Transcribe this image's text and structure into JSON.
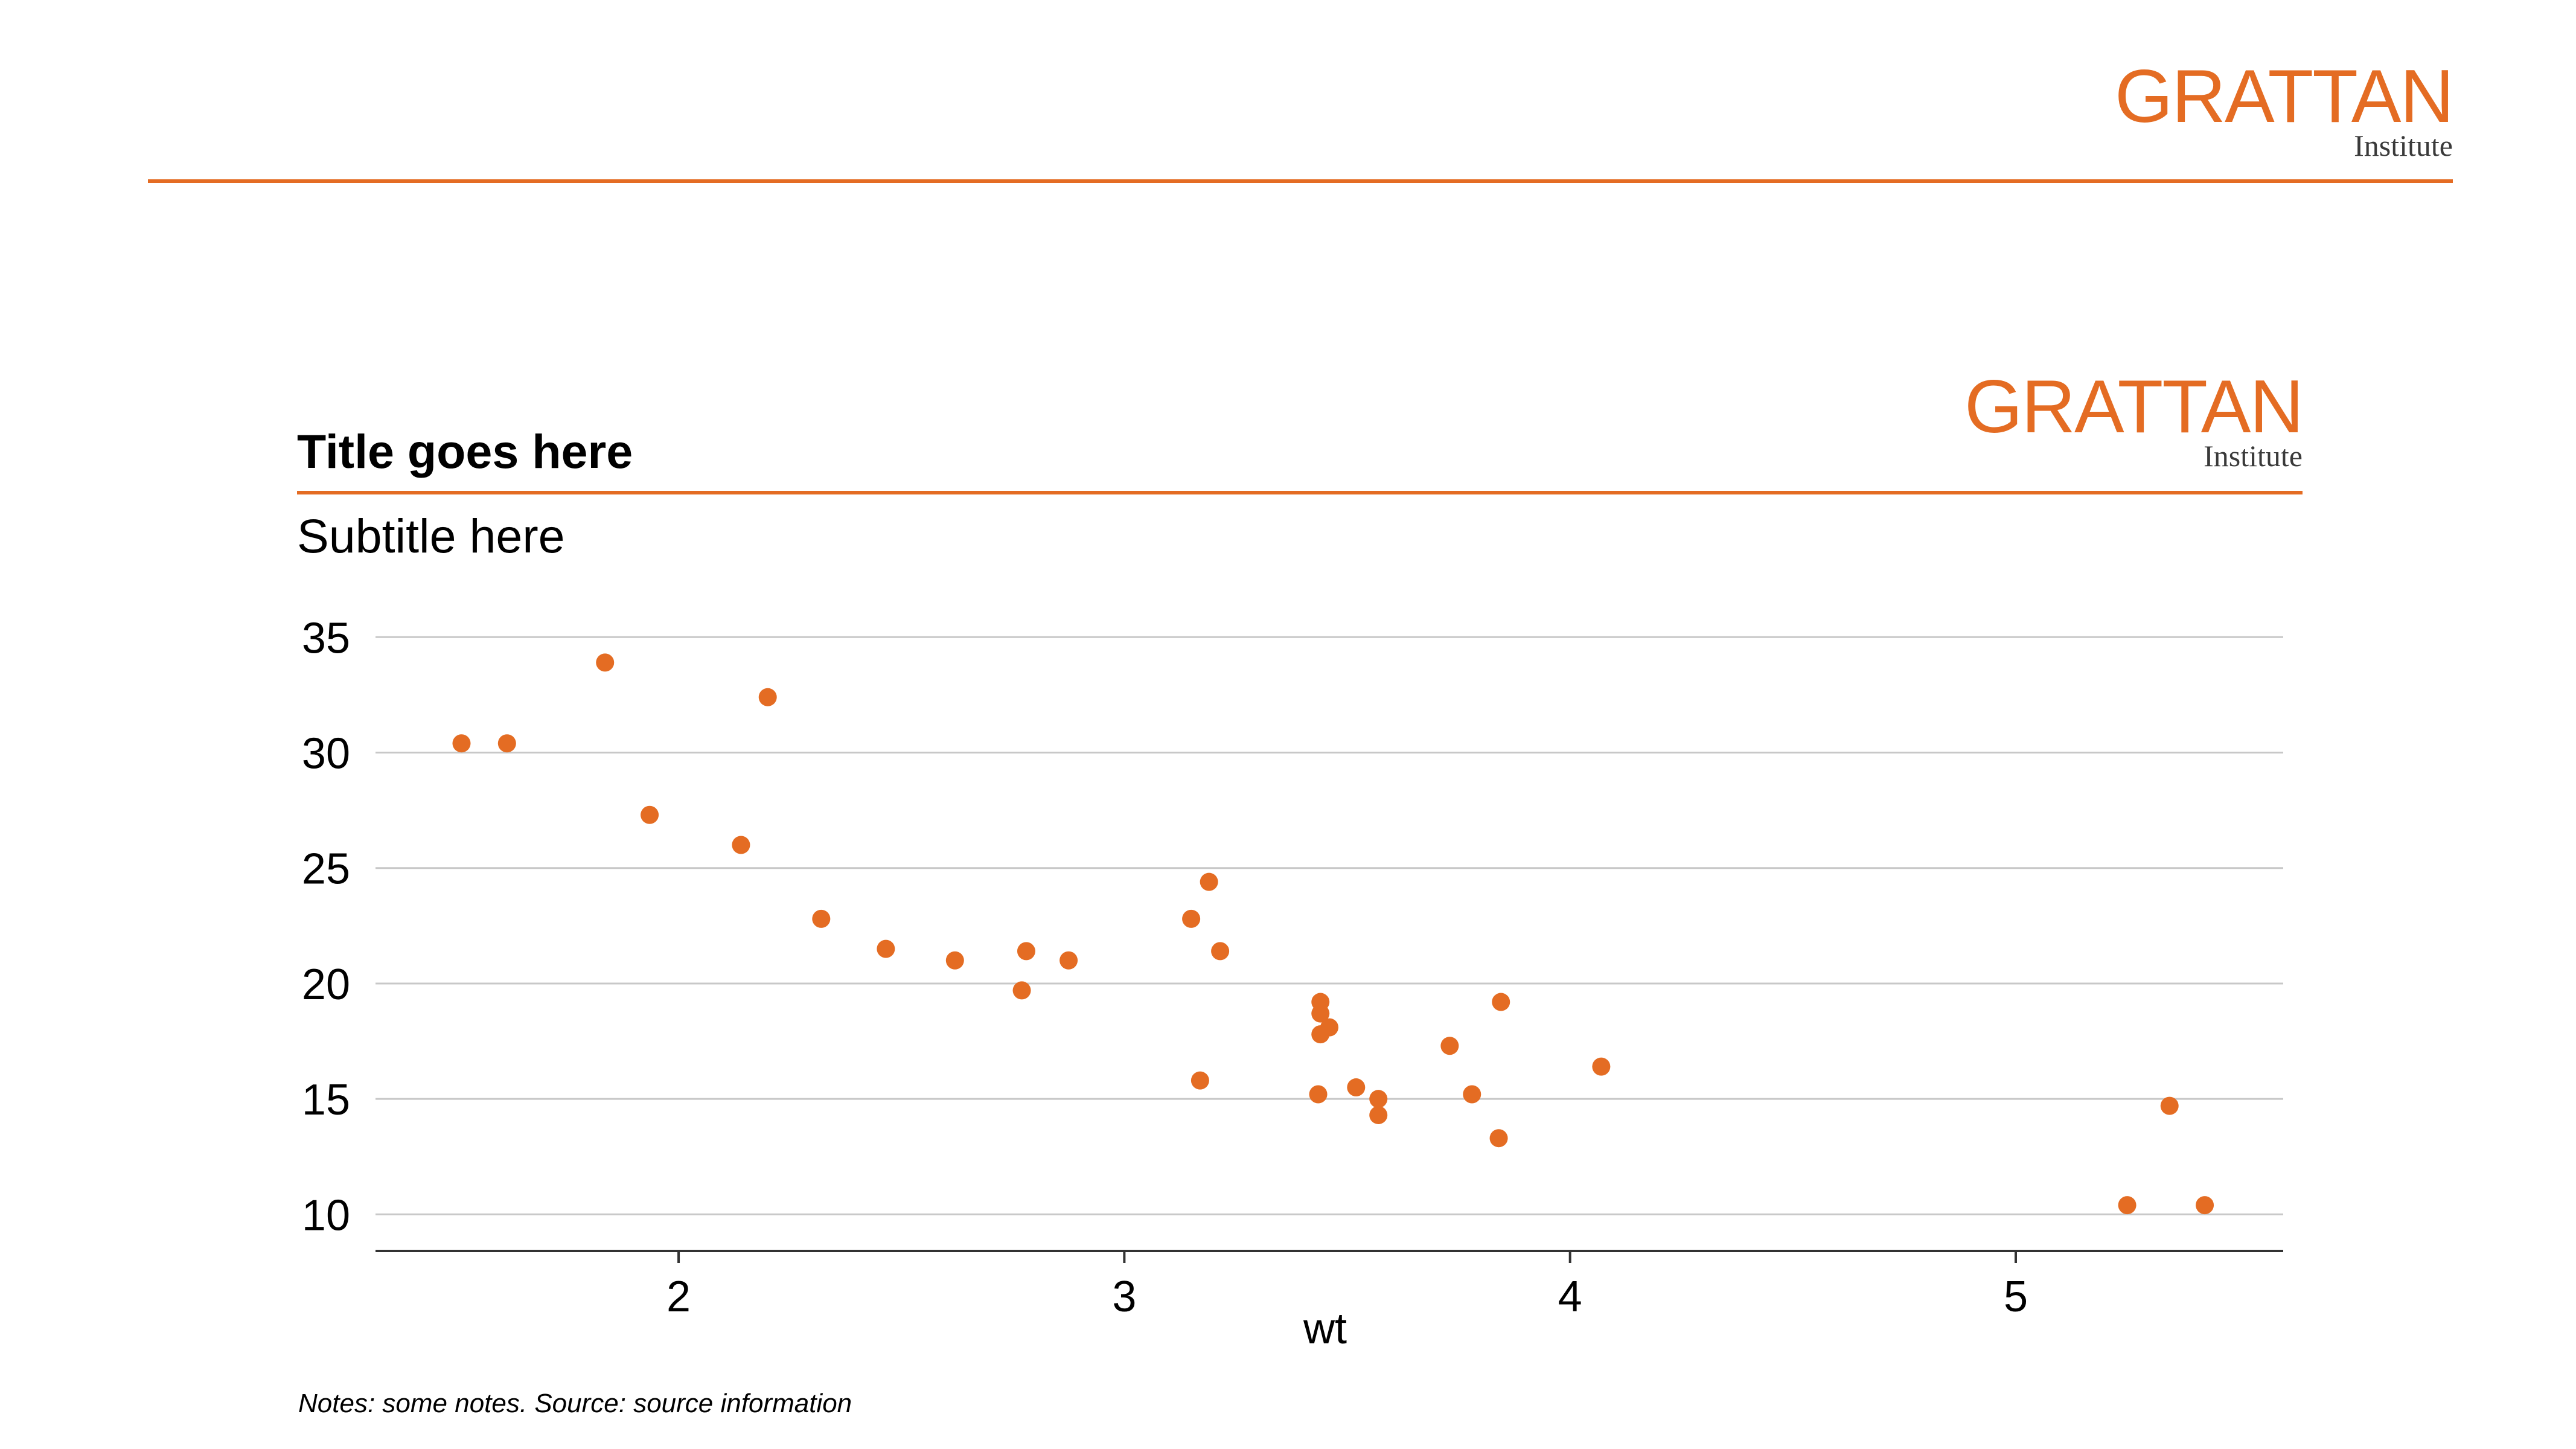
{
  "header_logo": {
    "word": "GRATTAN",
    "sub": "Institute"
  },
  "chart_logo": {
    "word": "GRATTAN",
    "sub": "Institute"
  },
  "notes": {
    "notes_label": "Notes:",
    "notes_text": "some notes.",
    "source_label": "Source:",
    "source_text": "source information"
  },
  "colors": {
    "accent": "#E46C23",
    "grid": "#C8C8C8",
    "axis": "#333333"
  },
  "chart_data": {
    "type": "scatter",
    "title": "Title goes here",
    "subtitle": "Subtitle here",
    "xlabel": "wt",
    "ylabel": "",
    "xlim": [
      1.32,
      5.6
    ],
    "ylim": [
      9.2,
      35.4
    ],
    "x_ticks": [
      2,
      3,
      4,
      5
    ],
    "y_ticks": [
      10,
      15,
      20,
      25,
      30,
      35
    ],
    "grid": "horizontal",
    "marker_color": "#E46C23",
    "points": [
      {
        "x": 1.513,
        "y": 30.4
      },
      {
        "x": 1.615,
        "y": 30.4
      },
      {
        "x": 1.835,
        "y": 33.9
      },
      {
        "x": 1.935,
        "y": 27.3
      },
      {
        "x": 2.14,
        "y": 26.0
      },
      {
        "x": 2.2,
        "y": 32.4
      },
      {
        "x": 2.32,
        "y": 22.8
      },
      {
        "x": 2.465,
        "y": 21.5
      },
      {
        "x": 2.62,
        "y": 21.0
      },
      {
        "x": 2.77,
        "y": 19.7
      },
      {
        "x": 2.78,
        "y": 21.4
      },
      {
        "x": 2.875,
        "y": 21.0
      },
      {
        "x": 3.15,
        "y": 22.8
      },
      {
        "x": 3.17,
        "y": 15.8
      },
      {
        "x": 3.19,
        "y": 24.4
      },
      {
        "x": 3.215,
        "y": 21.4
      },
      {
        "x": 3.435,
        "y": 15.2
      },
      {
        "x": 3.44,
        "y": 18.7
      },
      {
        "x": 3.44,
        "y": 19.2
      },
      {
        "x": 3.44,
        "y": 17.8
      },
      {
        "x": 3.46,
        "y": 18.1
      },
      {
        "x": 3.52,
        "y": 15.5
      },
      {
        "x": 3.57,
        "y": 14.3
      },
      {
        "x": 3.57,
        "y": 15.0
      },
      {
        "x": 3.73,
        "y": 17.3
      },
      {
        "x": 3.78,
        "y": 15.2
      },
      {
        "x": 3.84,
        "y": 13.3
      },
      {
        "x": 3.845,
        "y": 19.2
      },
      {
        "x": 4.07,
        "y": 16.4
      },
      {
        "x": 5.25,
        "y": 10.4
      },
      {
        "x": 5.345,
        "y": 14.7
      },
      {
        "x": 5.424,
        "y": 10.4
      }
    ]
  }
}
